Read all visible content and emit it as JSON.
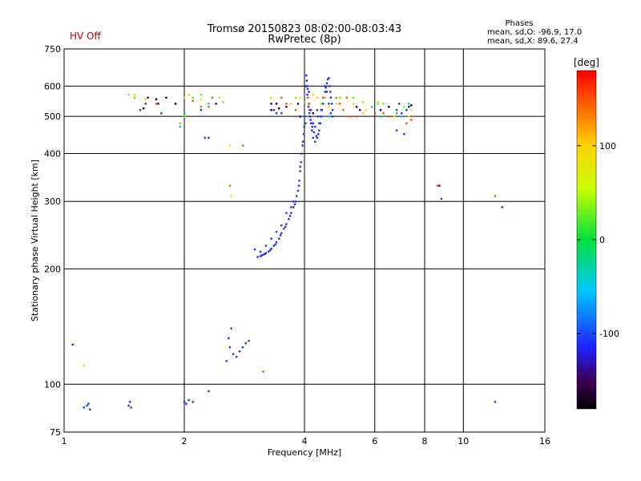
{
  "status_label": "HV Off",
  "phase_block": {
    "title": "Phases",
    "line_o": "mean, sd,O: -96.9, 17.0",
    "line_x": "mean, sd,X:  89.6, 27.4"
  },
  "colorbar": {
    "unit": "[deg]",
    "min": -180,
    "max": 180,
    "ticks": [
      "100",
      "0",
      "-100"
    ],
    "tick_values": [
      100,
      0,
      -100
    ]
  },
  "chart_data": {
    "type": "scatter",
    "title": "Tromsø 20150823 08:02:00-08:03:43",
    "subtitle": "RwPretec (8p)",
    "xlabel": "Frequency [MHz]",
    "ylabel": "Stationary phase Virtual Height [km]",
    "x_scale": "log",
    "y_scale": "log",
    "xlim": [
      1,
      16
    ],
    "ylim": [
      75,
      750
    ],
    "x_ticks": [
      "1",
      "2",
      "4",
      "6",
      "8",
      "10",
      "16"
    ],
    "x_tick_values": [
      1,
      2,
      4,
      6,
      8,
      10,
      16
    ],
    "y_ticks": [
      "75",
      "100",
      "200",
      "300",
      "400",
      "500",
      "600",
      "750"
    ],
    "y_tick_values": [
      75,
      100,
      200,
      300,
      400,
      500,
      600,
      750
    ],
    "grid": true,
    "series": [
      {
        "phase_deg": -110,
        "points": [
          [
            4.05,
            620
          ],
          [
            4.07,
            590
          ],
          [
            4.08,
            560
          ],
          [
            4.1,
            540
          ],
          [
            4.12,
            520
          ],
          [
            4.13,
            500
          ],
          [
            4.15,
            480
          ],
          [
            4.17,
            460
          ],
          [
            4.2,
            440
          ],
          [
            4.25,
            430
          ],
          [
            4.3,
            440
          ],
          [
            4.35,
            460
          ],
          [
            4.4,
            500
          ],
          [
            4.45,
            540
          ],
          [
            4.5,
            580
          ],
          [
            4.55,
            610
          ],
          [
            4.6,
            630
          ],
          [
            4.62,
            600
          ],
          [
            4.65,
            560
          ],
          [
            4.7,
            520
          ],
          [
            4.03,
            600
          ],
          [
            4.06,
            570
          ],
          [
            4.09,
            530
          ],
          [
            4.11,
            510
          ],
          [
            4.14,
            490
          ],
          [
            4.18,
            470
          ],
          [
            4.22,
            455
          ],
          [
            4.28,
            445
          ],
          [
            4.33,
            450
          ],
          [
            4.38,
            480
          ],
          [
            4.42,
            520
          ],
          [
            4.48,
            560
          ],
          [
            4.52,
            595
          ],
          [
            4.57,
            625
          ],
          [
            4.64,
            580
          ],
          [
            4.68,
            540
          ],
          [
            4.0,
            500
          ],
          [
            4.02,
            480
          ],
          [
            4.04,
            640
          ],
          [
            4.06,
            600
          ],
          [
            4.1,
            580
          ],
          [
            4.15,
            520
          ],
          [
            4.2,
            480
          ],
          [
            4.25,
            470
          ],
          [
            4.35,
            480
          ],
          [
            4.4,
            520
          ],
          [
            4.5,
            600
          ],
          [
            4.55,
            580
          ],
          [
            4.6,
            540
          ],
          [
            4.65,
            510
          ],
          [
            4.7,
            500
          ],
          [
            4.3,
            520
          ],
          [
            4.32,
            500
          ],
          [
            3.95,
            420
          ],
          [
            3.93,
            400
          ],
          [
            3.92,
            380
          ],
          [
            3.9,
            360
          ],
          [
            3.88,
            340
          ],
          [
            3.85,
            320
          ],
          [
            3.82,
            310
          ],
          [
            3.8,
            300
          ],
          [
            3.75,
            290
          ],
          [
            3.7,
            280
          ],
          [
            3.65,
            270
          ],
          [
            3.6,
            262
          ],
          [
            3.55,
            255
          ],
          [
            3.5,
            248
          ],
          [
            3.45,
            240
          ],
          [
            3.4,
            235
          ],
          [
            3.35,
            230
          ],
          [
            3.3,
            226
          ],
          [
            3.25,
            222
          ],
          [
            3.2,
            220
          ],
          [
            3.15,
            218
          ],
          [
            3.1,
            216
          ],
          [
            3.05,
            215
          ],
          [
            3.0,
            225
          ],
          [
            3.9,
            370
          ],
          [
            3.87,
            330
          ],
          [
            3.78,
            295
          ],
          [
            3.68,
            275
          ],
          [
            3.58,
            258
          ],
          [
            3.48,
            245
          ],
          [
            3.38,
            232
          ],
          [
            3.28,
            224
          ],
          [
            3.18,
            219
          ],
          [
            3.12,
            217
          ],
          [
            3.7,
            290
          ],
          [
            3.75,
            300
          ],
          [
            3.6,
            280
          ],
          [
            3.5,
            260
          ],
          [
            3.4,
            250
          ],
          [
            3.3,
            240
          ],
          [
            3.2,
            230
          ],
          [
            3.1,
            222
          ],
          [
            3.96,
            430
          ],
          [
            3.98,
            450
          ],
          [
            3.99,
            470
          ],
          [
            2.6,
            125
          ],
          [
            2.65,
            120
          ],
          [
            2.7,
            118
          ],
          [
            2.75,
            122
          ],
          [
            2.8,
            125
          ],
          [
            2.85,
            128
          ],
          [
            2.9,
            130
          ],
          [
            2.55,
            115
          ],
          [
            2.58,
            132
          ],
          [
            2.62,
            140
          ],
          [
            1.12,
            87
          ],
          [
            1.14,
            88
          ],
          [
            1.16,
            86
          ],
          [
            1.15,
            89
          ],
          [
            1.45,
            88
          ],
          [
            1.46,
            90
          ],
          [
            1.47,
            87
          ],
          [
            2.0,
            90
          ],
          [
            2.02,
            89
          ],
          [
            2.05,
            91
          ],
          [
            2.1,
            90
          ],
          [
            2.3,
            96
          ],
          [
            1.05,
            127
          ],
          [
            1.55,
            520
          ],
          [
            1.6,
            540
          ],
          [
            1.75,
            510
          ],
          [
            2.2,
            520
          ],
          [
            2.25,
            440
          ],
          [
            2.3,
            440
          ],
          [
            3.35,
            520
          ],
          [
            3.4,
            510
          ],
          [
            3.5,
            510
          ],
          [
            6.8,
            520
          ],
          [
            6.9,
            540
          ],
          [
            7.0,
            510
          ],
          [
            7.2,
            520
          ],
          [
            6.8,
            460
          ],
          [
            7.1,
            450
          ],
          [
            8.8,
            305
          ],
          [
            12.0,
            90
          ],
          [
            12.5,
            290
          ]
        ]
      },
      {
        "phase_deg": -150,
        "points": [
          [
            1.62,
            560
          ],
          [
            1.72,
            540
          ],
          [
            1.8,
            560
          ],
          [
            1.9,
            540
          ],
          [
            2.4,
            540
          ],
          [
            3.3,
            540
          ],
          [
            3.6,
            530
          ],
          [
            3.85,
            540
          ],
          [
            5.5,
            520
          ],
          [
            6.2,
            520
          ],
          [
            7.3,
            530
          ],
          [
            8.7,
            330
          ],
          [
            3.9,
            500
          ]
        ]
      },
      {
        "phase_deg": 150,
        "points": [
          [
            1.5,
            560
          ],
          [
            1.7,
            540
          ],
          [
            2.1,
            550
          ],
          [
            2.2,
            530
          ],
          [
            2.3,
            530
          ],
          [
            2.35,
            560
          ],
          [
            3.5,
            560
          ],
          [
            3.6,
            540
          ],
          [
            3.8,
            520
          ],
          [
            4.9,
            540
          ],
          [
            5.0,
            520
          ],
          [
            5.2,
            500
          ],
          [
            5.4,
            500
          ],
          [
            6.0,
            510
          ],
          [
            6.3,
            510
          ],
          [
            6.5,
            500
          ],
          [
            7.4,
            490
          ],
          [
            7.2,
            480
          ],
          [
            8.6,
            330
          ],
          [
            12.0,
            310
          ],
          [
            3.15,
            108
          ],
          [
            2.6,
            330
          ],
          [
            2.8,
            420
          ],
          [
            4.8,
            560
          ],
          [
            5.1,
            560
          ],
          [
            4.1,
            540
          ],
          [
            4.45,
            560
          ]
        ]
      },
      {
        "phase_deg": 100,
        "points": [
          [
            1.5,
            570
          ],
          [
            1.6,
            555
          ],
          [
            2.0,
            560
          ],
          [
            2.05,
            570
          ],
          [
            2.2,
            555
          ],
          [
            2.45,
            560
          ],
          [
            2.6,
            420
          ],
          [
            2.62,
            310
          ],
          [
            3.3,
            560
          ],
          [
            3.7,
            540
          ],
          [
            4.1,
            560
          ],
          [
            4.3,
            560
          ],
          [
            4.5,
            560
          ],
          [
            4.6,
            530
          ],
          [
            4.8,
            540
          ],
          [
            4.9,
            560
          ],
          [
            5.3,
            540
          ],
          [
            5.6,
            510
          ],
          [
            6.1,
            545
          ],
          [
            6.7,
            500
          ],
          [
            7.3,
            500
          ],
          [
            7.4,
            520
          ],
          [
            1.12,
            112
          ],
          [
            3.9,
            560
          ],
          [
            4.2,
            570
          ],
          [
            5.7,
            520
          ]
        ]
      },
      {
        "phase_deg": 30,
        "points": [
          [
            1.45,
            570
          ],
          [
            1.5,
            560
          ],
          [
            1.95,
            480
          ],
          [
            2.0,
            500
          ],
          [
            2.1,
            560
          ],
          [
            2.2,
            570
          ],
          [
            3.8,
            560
          ],
          [
            4.0,
            545
          ],
          [
            4.4,
            540
          ],
          [
            4.9,
            560
          ],
          [
            5.3,
            560
          ],
          [
            6.1,
            540
          ],
          [
            6.3,
            540
          ],
          [
            2.5,
            545
          ],
          [
            5.6,
            545
          ],
          [
            7.1,
            530
          ]
        ]
      },
      {
        "phase_deg": -20,
        "points": [
          [
            1.95,
            470
          ],
          [
            2.0,
            510
          ],
          [
            2.3,
            540
          ],
          [
            4.6,
            500
          ],
          [
            5.9,
            530
          ],
          [
            6.2,
            500
          ],
          [
            6.8,
            510
          ],
          [
            7.0,
            500
          ],
          [
            7.3,
            540
          ]
        ]
      },
      {
        "phase_deg": -170,
        "points": [
          [
            1.58,
            525
          ],
          [
            1.7,
            555
          ],
          [
            1.9,
            540
          ],
          [
            3.3,
            520
          ],
          [
            3.4,
            540
          ],
          [
            4.2,
            510
          ],
          [
            5.4,
            530
          ],
          [
            6.5,
            530
          ],
          [
            7.4,
            535
          ],
          [
            3.45,
            525
          ]
        ]
      }
    ]
  }
}
